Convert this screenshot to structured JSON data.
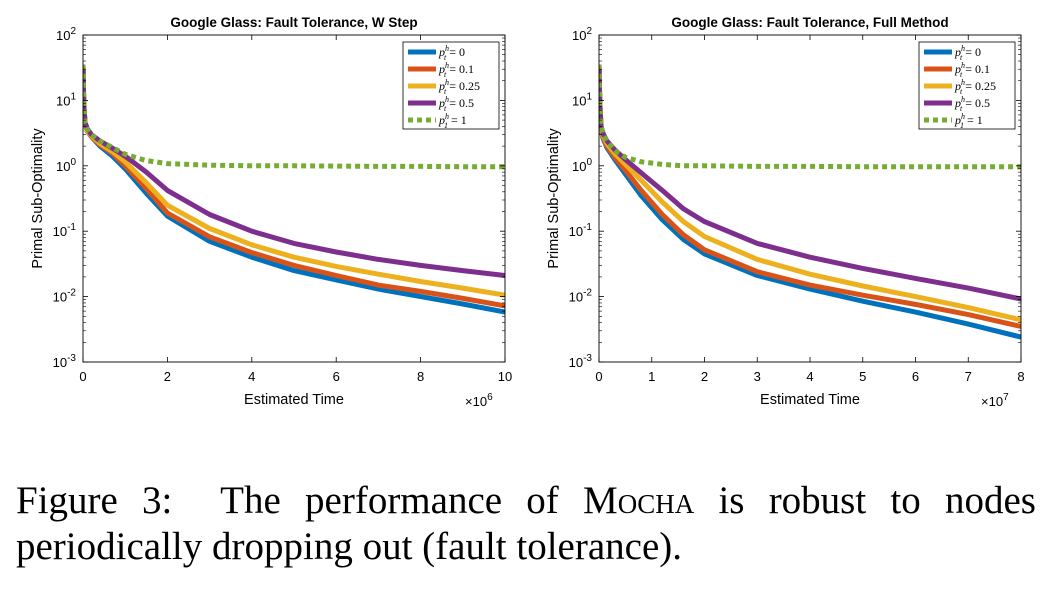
{
  "chart_data": [
    {
      "type": "line",
      "title": "Google Glass: Fault Tolerance, W Step",
      "xlabel": "Estimated Time",
      "ylabel": "Primal Sub-Optimality",
      "x_multiplier_base": "10",
      "x_multiplier_exp": "6",
      "xlim": [
        0,
        10
      ],
      "ylim": [
        0.001,
        100
      ],
      "yscale": "log",
      "xticks": [
        0,
        2,
        4,
        6,
        8,
        10
      ],
      "yticks": [
        {
          "value": 0.001,
          "base": "10",
          "exp": "-3"
        },
        {
          "value": 0.01,
          "base": "10",
          "exp": "-2"
        },
        {
          "value": 0.1,
          "base": "10",
          "exp": "-1"
        },
        {
          "value": 1,
          "base": "10",
          "exp": "0"
        },
        {
          "value": 10,
          "base": "10",
          "exp": "1"
        },
        {
          "value": 100,
          "base": "10",
          "exp": "2"
        }
      ],
      "grid": false,
      "legend_position": "top-right",
      "series": [
        {
          "name": "p = 0",
          "legend_sym": "p",
          "legend_sup": "h",
          "legend_sub": "t",
          "legend_val": "= 0",
          "color": "#0072BD",
          "dashed": false,
          "x": [
            0,
            0.02,
            0.05,
            0.1,
            0.2,
            0.4,
            0.7,
            1.0,
            1.5,
            2.0,
            3,
            4,
            5,
            6,
            7,
            8,
            9,
            10
          ],
          "y": [
            35,
            9,
            4.5,
            3.5,
            2.8,
            2.0,
            1.4,
            0.9,
            0.38,
            0.17,
            0.07,
            0.04,
            0.025,
            0.018,
            0.013,
            0.01,
            0.0077,
            0.0058
          ]
        },
        {
          "name": "p = 0.1",
          "legend_sym": "p",
          "legend_sup": "h",
          "legend_sub": "t",
          "legend_val": "= 0.1",
          "color": "#D95319",
          "dashed": false,
          "x": [
            0,
            0.02,
            0.05,
            0.1,
            0.2,
            0.4,
            0.7,
            1.0,
            1.5,
            2.0,
            3,
            4,
            5,
            6,
            7,
            8,
            9,
            10
          ],
          "y": [
            35,
            8,
            4.3,
            3.4,
            2.8,
            2.1,
            1.55,
            1.0,
            0.45,
            0.19,
            0.082,
            0.047,
            0.03,
            0.021,
            0.015,
            0.012,
            0.0094,
            0.0072
          ]
        },
        {
          "name": "p = 0.25",
          "legend_sym": "p",
          "legend_sup": "h",
          "legend_sub": "t",
          "legend_val": "= 0.25",
          "color": "#EDB120",
          "dashed": false,
          "x": [
            0,
            0.02,
            0.05,
            0.1,
            0.2,
            0.4,
            0.7,
            1.0,
            1.5,
            2.0,
            3,
            4,
            5,
            6,
            7,
            8,
            9,
            10
          ],
          "y": [
            35,
            8,
            4.4,
            3.5,
            2.9,
            2.2,
            1.65,
            1.15,
            0.55,
            0.25,
            0.11,
            0.062,
            0.04,
            0.029,
            0.022,
            0.017,
            0.0135,
            0.0105
          ]
        },
        {
          "name": "p = 0.5",
          "legend_sym": "p",
          "legend_sup": "h",
          "legend_sub": "t",
          "legend_val": "= 0.5",
          "color": "#7E2F8E",
          "dashed": false,
          "x": [
            0,
            0.02,
            0.05,
            0.1,
            0.2,
            0.4,
            0.7,
            1.0,
            1.5,
            2.0,
            3,
            4,
            5,
            6,
            7,
            8,
            9,
            10
          ],
          "y": [
            35,
            8,
            4.6,
            3.7,
            3.0,
            2.4,
            1.85,
            1.4,
            0.8,
            0.42,
            0.18,
            0.1,
            0.065,
            0.048,
            0.037,
            0.03,
            0.025,
            0.021
          ]
        },
        {
          "name": "p = 1",
          "legend_sym": "p",
          "legend_sup": "h",
          "legend_sub": "1",
          "legend_val": "= 1",
          "color": "#77AC30",
          "dashed": true,
          "x": [
            0,
            0.02,
            0.05,
            0.1,
            0.2,
            0.4,
            0.7,
            1.0,
            1.5,
            2.0,
            3,
            4,
            5,
            6,
            7,
            8,
            9,
            10
          ],
          "y": [
            35,
            8,
            4.5,
            3.6,
            3.0,
            2.4,
            1.9,
            1.5,
            1.2,
            1.08,
            1.02,
            1.0,
            1.0,
            0.99,
            0.98,
            0.98,
            0.97,
            0.97
          ]
        }
      ]
    },
    {
      "type": "line",
      "title": "Google Glass: Fault Tolerance, Full Method",
      "xlabel": "Estimated Time",
      "ylabel": "Primal Sub-Optimality",
      "x_multiplier_base": "10",
      "x_multiplier_exp": "7",
      "xlim": [
        0,
        8
      ],
      "ylim": [
        0.001,
        100
      ],
      "yscale": "log",
      "xticks": [
        0,
        1,
        2,
        3,
        4,
        5,
        6,
        7,
        8
      ],
      "yticks": [
        {
          "value": 0.001,
          "base": "10",
          "exp": "-3"
        },
        {
          "value": 0.01,
          "base": "10",
          "exp": "-2"
        },
        {
          "value": 0.1,
          "base": "10",
          "exp": "-1"
        },
        {
          "value": 1,
          "base": "10",
          "exp": "0"
        },
        {
          "value": 10,
          "base": "10",
          "exp": "1"
        },
        {
          "value": 100,
          "base": "10",
          "exp": "2"
        }
      ],
      "grid": false,
      "legend_position": "top-right",
      "series": [
        {
          "name": "p = 0",
          "legend_sym": "p",
          "legend_sup": "h",
          "legend_sub": "t",
          "legend_val": "= 0",
          "color": "#0072BD",
          "dashed": false,
          "x": [
            0,
            0.015,
            0.04,
            0.08,
            0.15,
            0.3,
            0.5,
            0.8,
            1.2,
            1.6,
            2,
            3,
            4,
            5,
            6,
            7,
            8
          ],
          "y": [
            35,
            9,
            3.5,
            2.6,
            1.9,
            1.25,
            0.75,
            0.35,
            0.15,
            0.075,
            0.045,
            0.021,
            0.013,
            0.0085,
            0.0058,
            0.0038,
            0.0024
          ]
        },
        {
          "name": "p = 0.1",
          "legend_sym": "p",
          "legend_sup": "h",
          "legend_sub": "t",
          "legend_val": "= 0.1",
          "color": "#D95319",
          "dashed": false,
          "x": [
            0,
            0.015,
            0.04,
            0.08,
            0.15,
            0.3,
            0.5,
            0.8,
            1.2,
            1.6,
            2,
            3,
            4,
            5,
            6,
            7,
            8
          ],
          "y": [
            35,
            9,
            3.6,
            2.7,
            2.0,
            1.35,
            0.85,
            0.42,
            0.18,
            0.088,
            0.052,
            0.024,
            0.015,
            0.0105,
            0.0076,
            0.0053,
            0.0035
          ]
        },
        {
          "name": "p = 0.25",
          "legend_sym": "p",
          "legend_sup": "h",
          "legend_sub": "t",
          "legend_val": "= 0.25",
          "color": "#EDB120",
          "dashed": false,
          "x": [
            0,
            0.015,
            0.04,
            0.08,
            0.15,
            0.3,
            0.5,
            0.8,
            1.2,
            1.6,
            2,
            3,
            4,
            5,
            6,
            7,
            8
          ],
          "y": [
            35,
            9,
            3.8,
            2.9,
            2.2,
            1.55,
            1.05,
            0.6,
            0.28,
            0.14,
            0.083,
            0.037,
            0.022,
            0.0145,
            0.01,
            0.0068,
            0.0044
          ]
        },
        {
          "name": "p = 0.5",
          "legend_sym": "p",
          "legend_sup": "h",
          "legend_sub": "t",
          "legend_val": "= 0.5",
          "color": "#7E2F8E",
          "dashed": false,
          "x": [
            0,
            0.015,
            0.04,
            0.08,
            0.15,
            0.3,
            0.5,
            0.8,
            1.2,
            1.6,
            2,
            3,
            4,
            5,
            6,
            7,
            8
          ],
          "y": [
            35,
            9,
            4.0,
            3.1,
            2.4,
            1.75,
            1.25,
            0.78,
            0.42,
            0.22,
            0.14,
            0.065,
            0.04,
            0.027,
            0.019,
            0.0135,
            0.0092
          ]
        },
        {
          "name": "p = 1",
          "legend_sym": "p",
          "legend_sup": "h",
          "legend_sub": "1",
          "legend_val": "= 1",
          "color": "#77AC30",
          "dashed": true,
          "x": [
            0,
            0.015,
            0.04,
            0.08,
            0.15,
            0.3,
            0.5,
            0.8,
            1.2,
            1.6,
            2,
            3,
            4,
            5,
            6,
            7,
            8
          ],
          "y": [
            35,
            9,
            4.0,
            3.0,
            2.4,
            1.7,
            1.35,
            1.15,
            1.05,
            1.0,
            1.0,
            0.98,
            0.98,
            0.97,
            0.97,
            0.97,
            0.97
          ]
        }
      ]
    }
  ],
  "caption": {
    "label": "Figure 3:",
    "text_before": "The performance of",
    "method": "Mocha",
    "text_after": "is robust to nodes periodically dropping out (fault tolerance)."
  }
}
